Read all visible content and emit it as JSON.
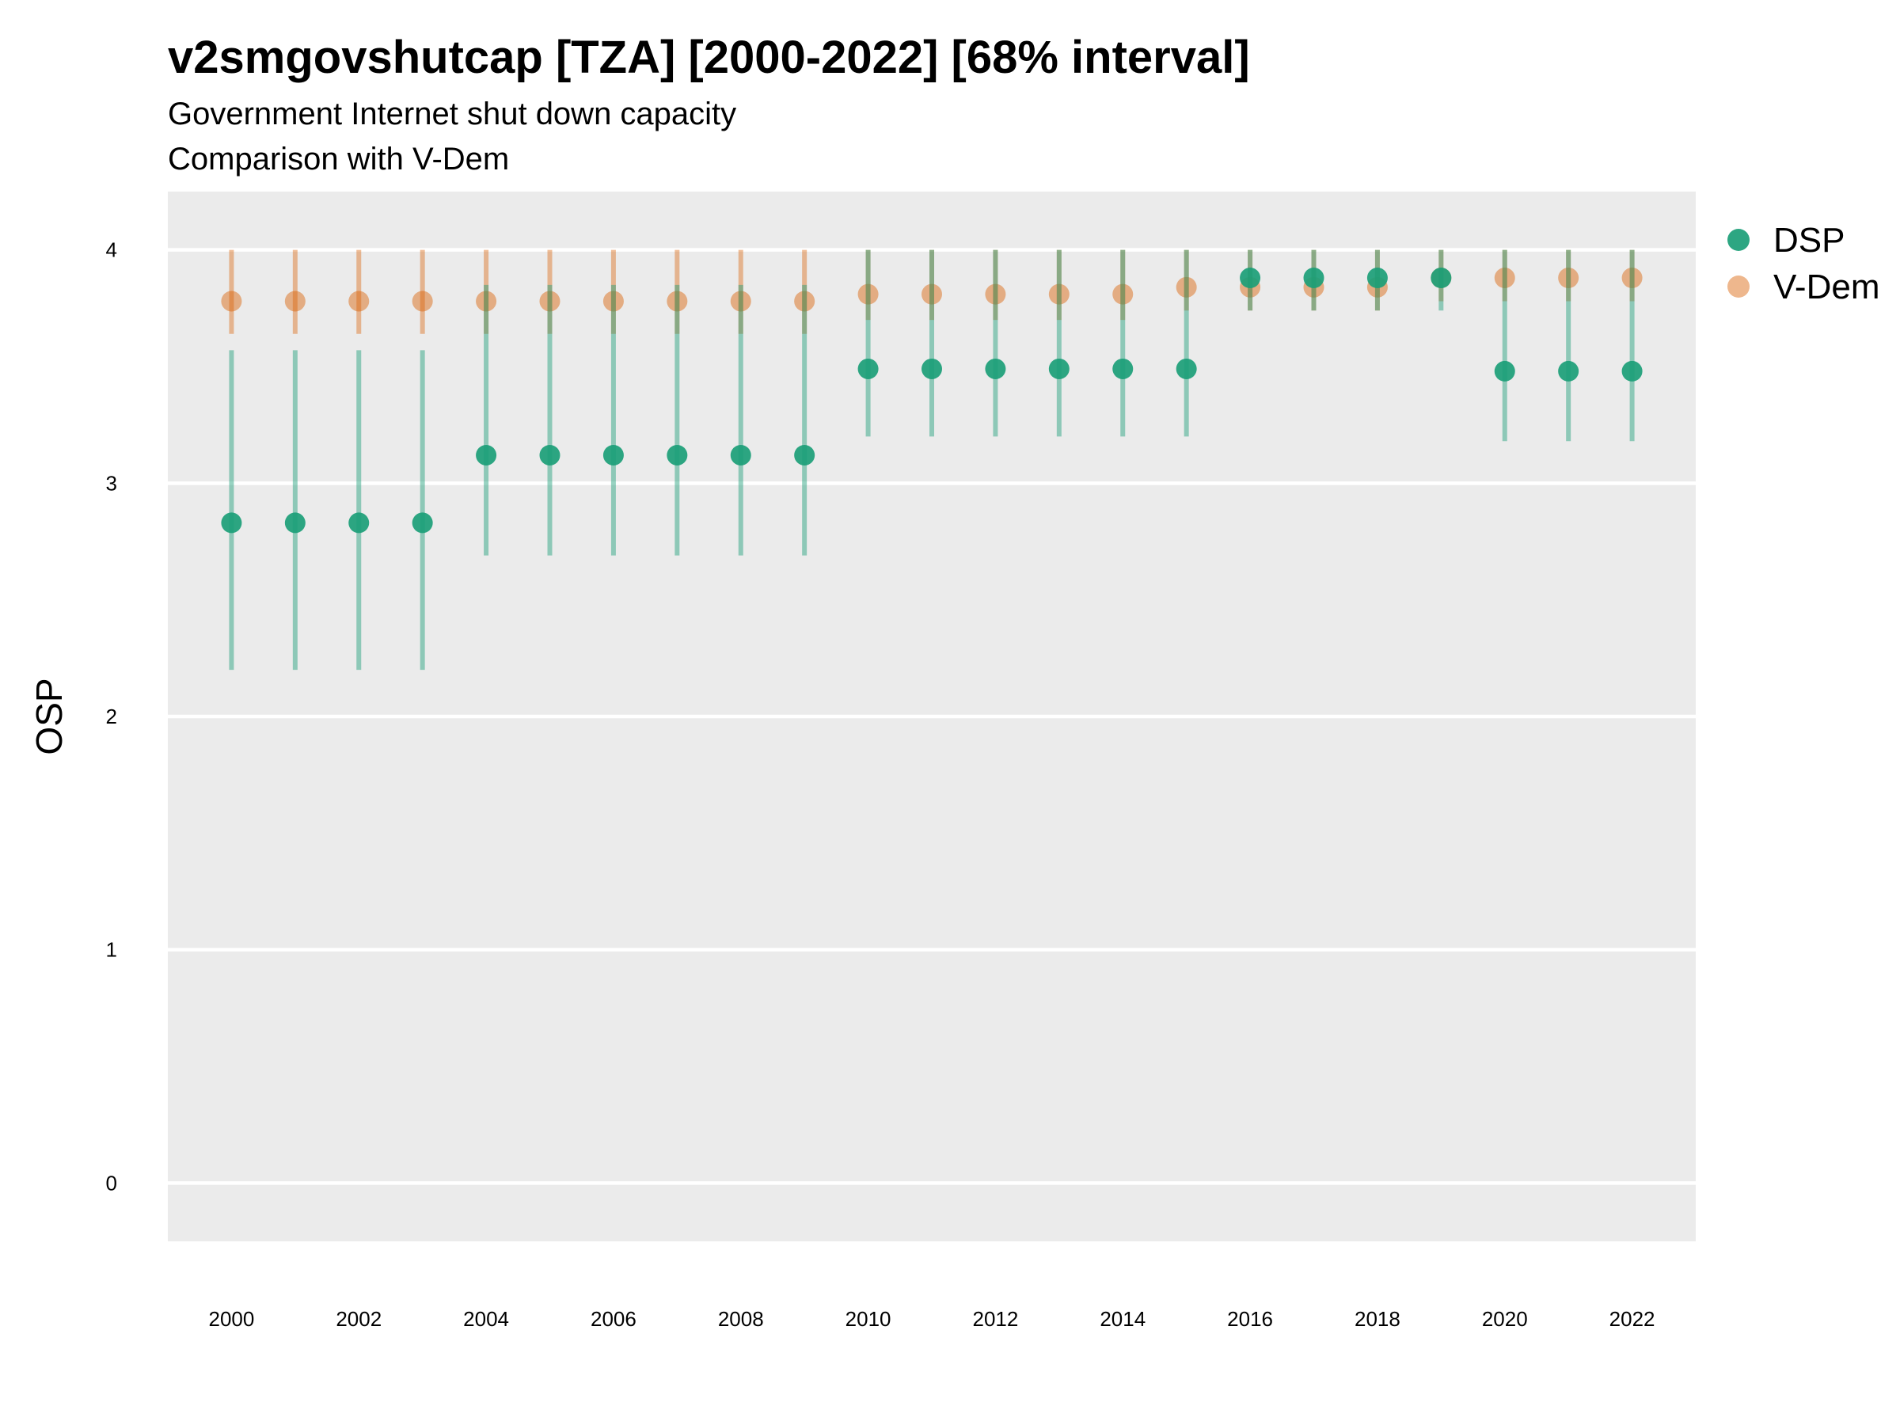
{
  "chart_data": {
    "type": "scatter",
    "title": "v2smgovshutcap [TZA] [2000-2022] [68% interval]",
    "subtitle_lines": [
      "Government Internet shut down capacity",
      "Comparison with V-Dem"
    ],
    "xlabel": "",
    "ylabel": "OSP",
    "ylim": [
      -0.25,
      4.25
    ],
    "y_ticks": [
      0,
      1,
      2,
      3,
      4
    ],
    "x_ticks": [
      2000,
      2002,
      2004,
      2006,
      2008,
      2010,
      2012,
      2014,
      2016,
      2018,
      2020,
      2022
    ],
    "x": [
      2000,
      2001,
      2002,
      2003,
      2004,
      2005,
      2006,
      2007,
      2008,
      2009,
      2010,
      2011,
      2012,
      2013,
      2014,
      2015,
      2016,
      2017,
      2018,
      2019,
      2020,
      2021,
      2022
    ],
    "grid": true,
    "legend_position": "right",
    "series": [
      {
        "name": "DSP",
        "color": "#1b9e77",
        "values": [
          2.83,
          2.83,
          2.83,
          2.83,
          3.12,
          3.12,
          3.12,
          3.12,
          3.12,
          3.12,
          3.49,
          3.49,
          3.49,
          3.49,
          3.49,
          3.49,
          3.88,
          3.88,
          3.88,
          3.88,
          3.48,
          3.48,
          3.48
        ],
        "lower": [
          2.2,
          2.2,
          2.2,
          2.2,
          2.69,
          2.69,
          2.69,
          2.69,
          2.69,
          2.69,
          3.2,
          3.2,
          3.2,
          3.2,
          3.2,
          3.2,
          3.74,
          3.74,
          3.74,
          3.74,
          3.18,
          3.18,
          3.18
        ],
        "upper": [
          3.57,
          3.57,
          3.57,
          3.57,
          3.85,
          3.85,
          3.85,
          3.85,
          3.85,
          3.85,
          4.0,
          4.0,
          4.0,
          4.0,
          4.0,
          4.0,
          4.0,
          4.0,
          4.0,
          4.0,
          4.0,
          4.0,
          4.0
        ]
      },
      {
        "name": "V-Dem",
        "color": "#d95f02",
        "values": [
          3.78,
          3.78,
          3.78,
          3.78,
          3.78,
          3.78,
          3.78,
          3.78,
          3.78,
          3.78,
          3.81,
          3.81,
          3.81,
          3.81,
          3.81,
          3.84,
          3.84,
          3.84,
          3.84,
          3.88,
          3.88,
          3.88,
          3.88
        ],
        "lower": [
          3.64,
          3.64,
          3.64,
          3.64,
          3.64,
          3.64,
          3.64,
          3.64,
          3.64,
          3.64,
          3.7,
          3.7,
          3.7,
          3.7,
          3.7,
          3.74,
          3.74,
          3.74,
          3.74,
          3.78,
          3.78,
          3.78,
          3.78
        ],
        "upper": [
          4.0,
          4.0,
          4.0,
          4.0,
          4.0,
          4.0,
          4.0,
          4.0,
          4.0,
          4.0,
          4.0,
          4.0,
          4.0,
          4.0,
          4.0,
          4.0,
          4.0,
          4.0,
          4.0,
          4.0,
          4.0,
          4.0,
          4.0
        ]
      }
    ]
  }
}
